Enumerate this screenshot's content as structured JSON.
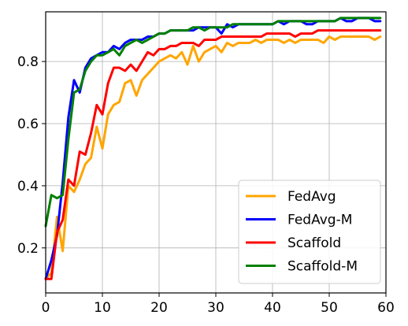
{
  "chart_data": {
    "type": "line",
    "title": "",
    "xlabel": "",
    "ylabel": "",
    "xlim": [
      0,
      60
    ],
    "ylim": [
      0.055,
      0.96
    ],
    "xticks": [
      0,
      10,
      20,
      30,
      40,
      50,
      60
    ],
    "yticks": [
      0.2,
      0.4,
      0.6,
      0.8
    ],
    "xtick_labels": [
      "0",
      "10",
      "20",
      "30",
      "40",
      "50",
      "60"
    ],
    "ytick_labels": [
      "0.2",
      "0.4",
      "0.6",
      "0.8"
    ],
    "grid": true,
    "legend_position": "lower-right",
    "x": [
      0,
      1,
      2,
      3,
      4,
      5,
      6,
      7,
      8,
      9,
      10,
      11,
      12,
      13,
      14,
      15,
      16,
      17,
      18,
      19,
      20,
      21,
      22,
      23,
      24,
      25,
      26,
      27,
      28,
      29,
      30,
      31,
      32,
      33,
      34,
      35,
      36,
      37,
      38,
      39,
      40,
      41,
      42,
      43,
      44,
      45,
      46,
      47,
      48,
      49,
      50,
      51,
      52,
      53,
      54,
      55,
      56,
      57,
      58,
      59
    ],
    "series": [
      {
        "name": "FedAvg",
        "color": "#FFA500",
        "values": [
          0.1,
          0.12,
          0.3,
          0.19,
          0.4,
          0.38,
          0.42,
          0.47,
          0.49,
          0.59,
          0.52,
          0.63,
          0.66,
          0.67,
          0.73,
          0.74,
          0.69,
          0.74,
          0.76,
          0.78,
          0.8,
          0.81,
          0.82,
          0.81,
          0.83,
          0.79,
          0.85,
          0.8,
          0.83,
          0.84,
          0.85,
          0.83,
          0.86,
          0.85,
          0.86,
          0.86,
          0.86,
          0.87,
          0.86,
          0.87,
          0.87,
          0.87,
          0.86,
          0.87,
          0.86,
          0.87,
          0.87,
          0.87,
          0.87,
          0.86,
          0.88,
          0.87,
          0.88,
          0.88,
          0.88,
          0.88,
          0.88,
          0.88,
          0.87,
          0.88
        ]
      },
      {
        "name": "FedAvg-M",
        "color": "#0000FF",
        "values": [
          0.1,
          0.16,
          0.24,
          0.41,
          0.62,
          0.74,
          0.7,
          0.78,
          0.81,
          0.82,
          0.83,
          0.83,
          0.85,
          0.84,
          0.86,
          0.87,
          0.87,
          0.87,
          0.88,
          0.88,
          0.89,
          0.89,
          0.9,
          0.9,
          0.9,
          0.9,
          0.9,
          0.91,
          0.91,
          0.91,
          0.91,
          0.89,
          0.92,
          0.91,
          0.92,
          0.92,
          0.92,
          0.92,
          0.92,
          0.92,
          0.92,
          0.93,
          0.92,
          0.93,
          0.93,
          0.93,
          0.92,
          0.92,
          0.93,
          0.93,
          0.93,
          0.93,
          0.94,
          0.93,
          0.93,
          0.94,
          0.94,
          0.94,
          0.93,
          0.93
        ]
      },
      {
        "name": "Scaffold",
        "color": "#FF0000",
        "values": [
          0.1,
          0.1,
          0.25,
          0.29,
          0.42,
          0.4,
          0.51,
          0.5,
          0.57,
          0.66,
          0.63,
          0.73,
          0.78,
          0.78,
          0.77,
          0.79,
          0.77,
          0.8,
          0.83,
          0.82,
          0.84,
          0.84,
          0.85,
          0.85,
          0.86,
          0.86,
          0.86,
          0.85,
          0.87,
          0.87,
          0.87,
          0.88,
          0.88,
          0.88,
          0.88,
          0.88,
          0.88,
          0.88,
          0.88,
          0.89,
          0.89,
          0.89,
          0.89,
          0.89,
          0.88,
          0.89,
          0.89,
          0.89,
          0.9,
          0.9,
          0.9,
          0.9,
          0.9,
          0.9,
          0.9,
          0.9,
          0.9,
          0.9,
          0.9,
          0.9
        ]
      },
      {
        "name": "Scaffold-M",
        "color": "#008000",
        "values": [
          0.27,
          0.37,
          0.36,
          0.37,
          0.55,
          0.7,
          0.71,
          0.77,
          0.8,
          0.82,
          0.82,
          0.83,
          0.84,
          0.82,
          0.85,
          0.86,
          0.87,
          0.86,
          0.87,
          0.88,
          0.89,
          0.89,
          0.9,
          0.9,
          0.9,
          0.9,
          0.91,
          0.91,
          0.9,
          0.91,
          0.91,
          0.91,
          0.91,
          0.92,
          0.92,
          0.92,
          0.92,
          0.92,
          0.92,
          0.92,
          0.92,
          0.93,
          0.93,
          0.93,
          0.93,
          0.93,
          0.93,
          0.93,
          0.93,
          0.93,
          0.93,
          0.93,
          0.94,
          0.94,
          0.94,
          0.94,
          0.94,
          0.94,
          0.94,
          0.94
        ]
      }
    ]
  }
}
